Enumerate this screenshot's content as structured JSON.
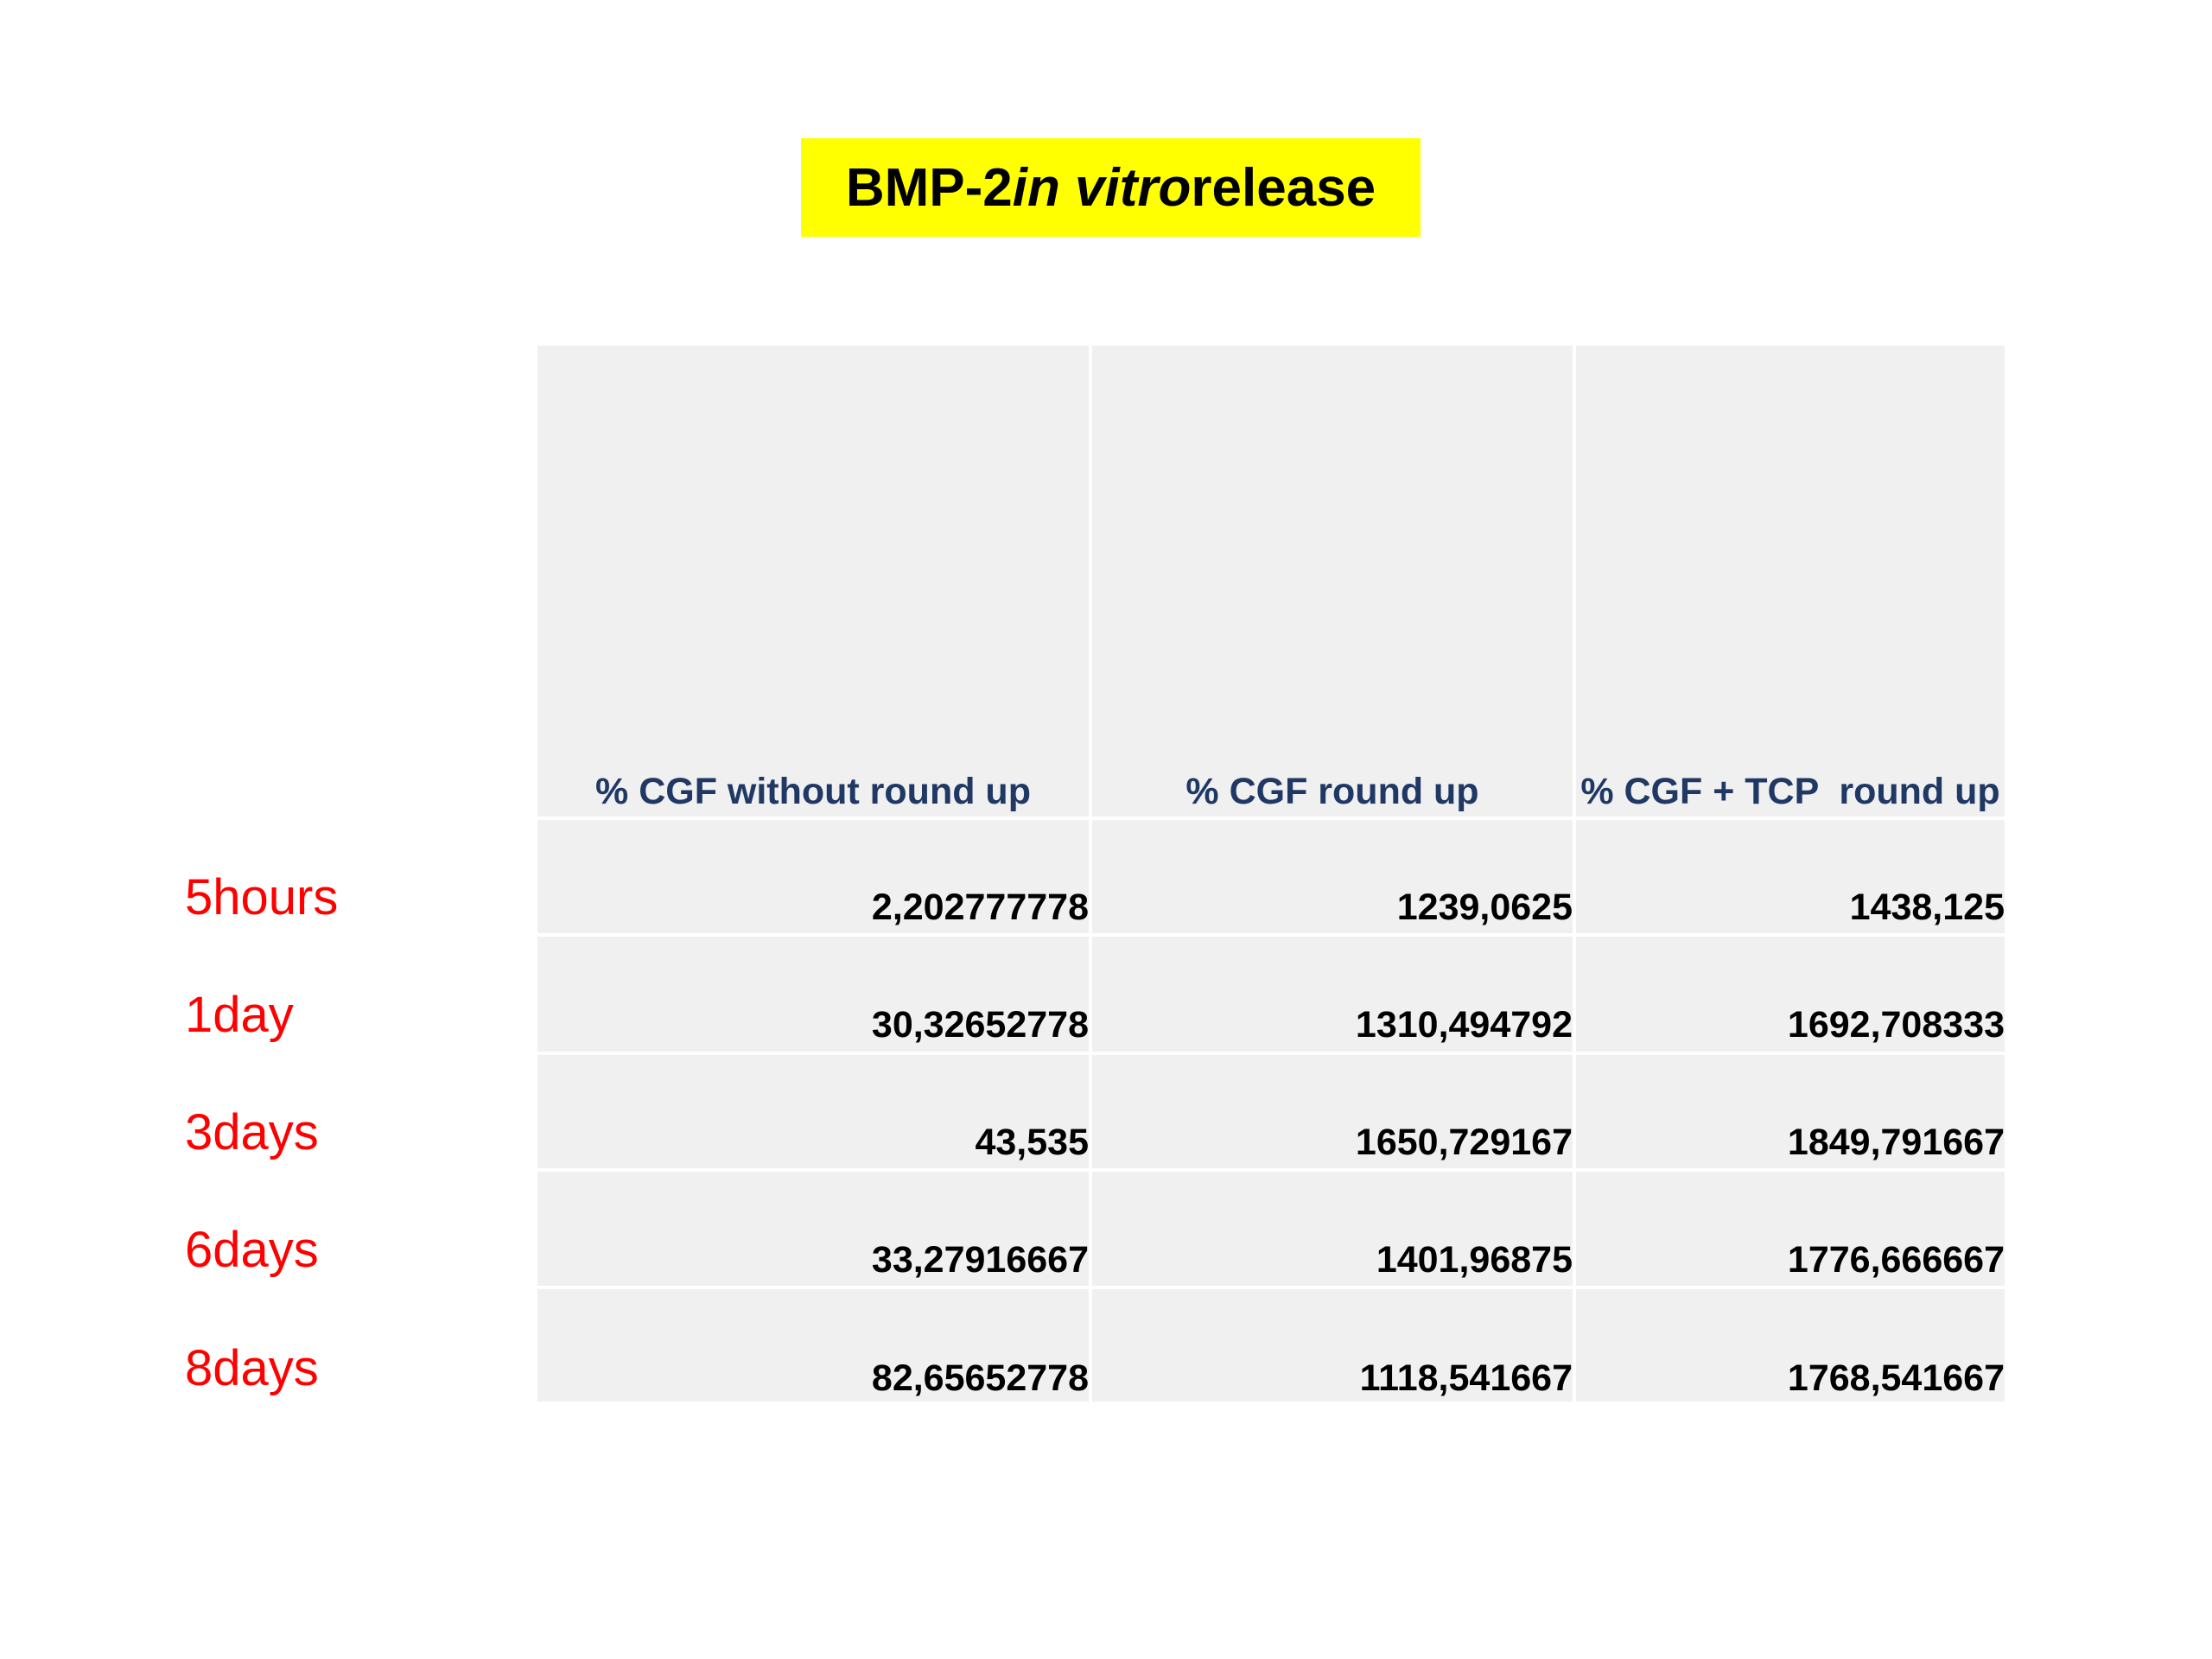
{
  "title": {
    "prefix": "BMP-2 ",
    "italic": "in vitro",
    "suffix": " release",
    "background_color": "#ffff00"
  },
  "table": {
    "columns": [
      "% CGF without round up",
      "% CGF round up",
      "% CGF + TCP  round up"
    ],
    "rows": [
      {
        "label": "5hours",
        "values": [
          "2,202777778",
          "1239,0625",
          "1438,125"
        ]
      },
      {
        "label": "1day",
        "values": [
          "30,32652778",
          "1310,494792",
          "1692,708333"
        ]
      },
      {
        "label": "3days",
        "values": [
          "43,535",
          "1650,729167",
          "1849,791667"
        ]
      },
      {
        "label": "6days",
        "values": [
          "33,27916667",
          "1401,96875",
          "1776,666667"
        ]
      },
      {
        "label": "8days",
        "values": [
          "82,65652778",
          "1118,541667",
          "1768,541667"
        ]
      }
    ],
    "header_color": "#1f3864",
    "row_label_color": "#ff0000",
    "cell_background": "#f0f0f0"
  }
}
